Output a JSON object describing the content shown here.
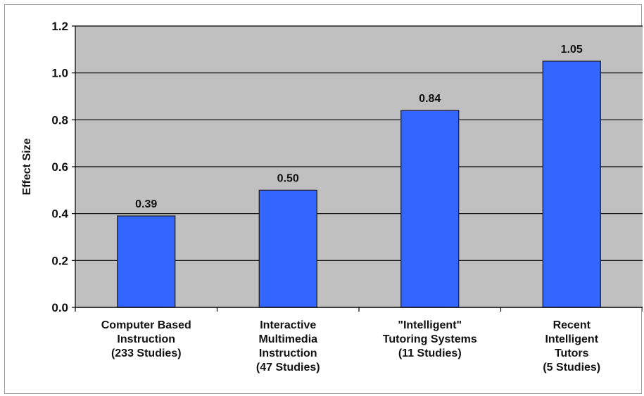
{
  "chart_data": {
    "type": "bar",
    "title": "",
    "xlabel": "",
    "ylabel": "Effect Size",
    "ylim": [
      0,
      1.2
    ],
    "yticks": [
      "0.0",
      "0.2",
      "0.4",
      "0.6",
      "0.8",
      "1.0",
      "1.2"
    ],
    "grid": true,
    "categories": [
      [
        "Computer Based",
        "Instruction",
        "(233 Studies)"
      ],
      [
        "Interactive",
        "Multimedia",
        "Instruction",
        "(47 Studies)"
      ],
      [
        "\"Intelligent\"",
        "Tutoring Systems",
        "(11 Studies)"
      ],
      [
        "Recent",
        "Intelligent",
        "Tutors",
        "(5 Studies)"
      ]
    ],
    "values": [
      0.39,
      0.5,
      0.84,
      1.05
    ],
    "value_labels": [
      "0.39",
      "0.50",
      "0.84",
      "1.05"
    ],
    "colors": {
      "bar_fill": "#3366ff",
      "bar_stroke": "#1a1a1a",
      "plot_background": "#c0c0c0",
      "gridline": "#000000"
    }
  }
}
